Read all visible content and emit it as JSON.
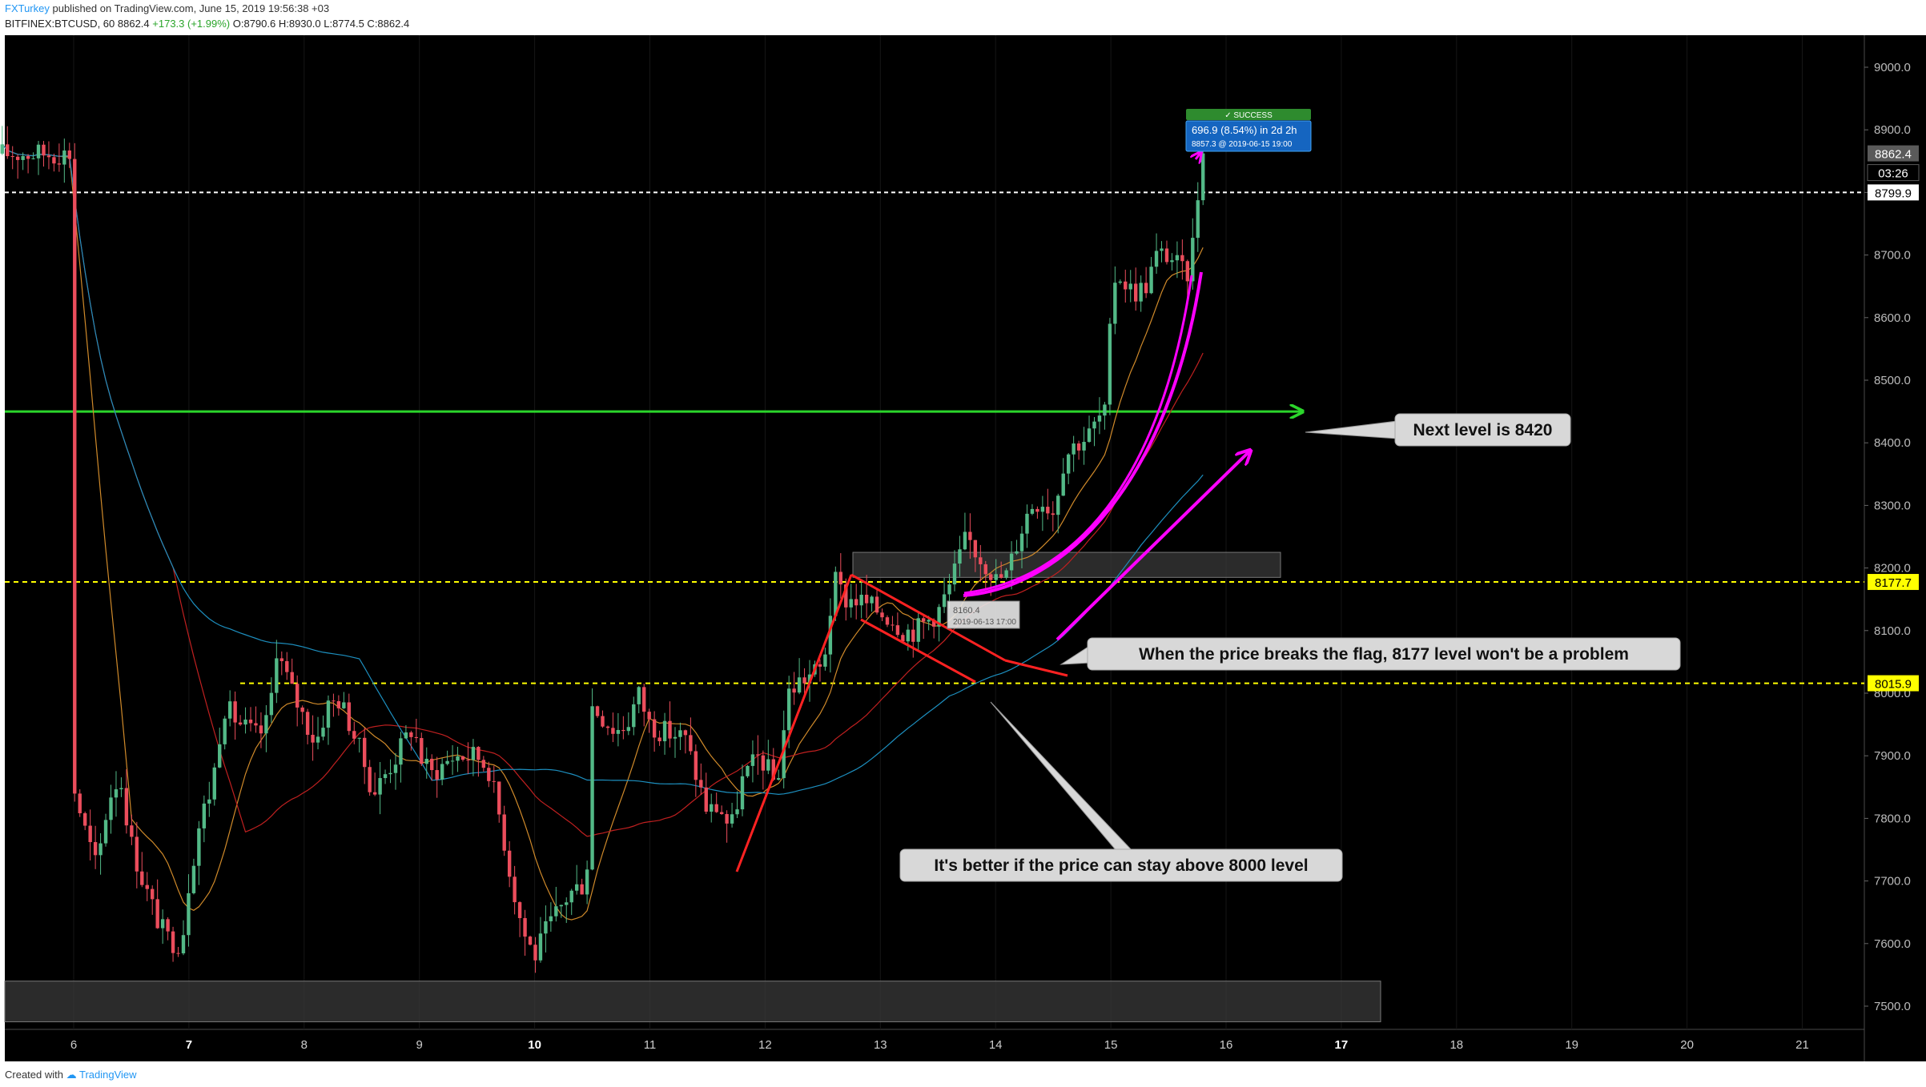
{
  "header": {
    "author": "FXTurkey",
    "published": "published on TradingView.com, June 15, 2019 19:56:38 +03",
    "symbol": "BITFINEX:BTCUSD, 60",
    "last": "8862.4",
    "change": "+173.3 (+1.99%)",
    "ohlc": "O:8790.6 H:8930.0 L:8774.5 C:8862.4"
  },
  "footer": {
    "created_with": "Created with",
    "brand": "TradingView"
  },
  "colors": {
    "background": "#000000",
    "up": "#53b987",
    "down": "#eb4d5c",
    "support": "#ffff00",
    "resistance": "#2bd52b",
    "flag": "#ff2222",
    "projection": "#ff00ff"
  },
  "chart_data": {
    "type": "candlestick",
    "ylim": [
      7470,
      9080
    ],
    "x_ticks": [
      "6",
      "7",
      "8",
      "9",
      "10",
      "11",
      "12",
      "13",
      "14",
      "15",
      "16",
      "17",
      "18",
      "19",
      "20",
      "21"
    ],
    "x_ticks_bold": [
      "7",
      "10",
      "17"
    ],
    "y_ticks": [
      "9000.0",
      "8900.0",
      "8800.0",
      "8700.0",
      "8600.0",
      "8500.0",
      "8400.0",
      "8300.0",
      "8200.0",
      "8100.0",
      "8000.0",
      "7900.0",
      "7800.0",
      "7700.0",
      "7600.0",
      "7500.0"
    ],
    "price_labels": {
      "last": "8862.4",
      "countdown": "03:26",
      "level_white": "8799.9",
      "level_mid": "8177.7",
      "level_low": "8015.9"
    },
    "levels": {
      "white_dashed": 8800,
      "green_line": 8450,
      "yellow_upper": 8177.7,
      "yellow_lower": 8015.9
    },
    "price_path": [
      [
        0.0,
        7850
      ],
      [
        0.1,
        7780
      ],
      [
        0.2,
        7720
      ],
      [
        0.3,
        7830
      ],
      [
        0.4,
        7870
      ],
      [
        0.5,
        7760
      ],
      [
        0.6,
        7700
      ],
      [
        0.7,
        7650
      ],
      [
        0.8,
        7610
      ],
      [
        0.9,
        7600
      ],
      [
        0.95,
        7620
      ],
      [
        1.0,
        7700
      ],
      [
        1.1,
        7800
      ],
      [
        1.2,
        7850
      ],
      [
        1.3,
        7980
      ],
      [
        1.45,
        7950
      ],
      [
        1.6,
        7930
      ],
      [
        1.7,
        7960
      ],
      [
        1.75,
        8080
      ],
      [
        1.8,
        8050
      ],
      [
        1.9,
        8000
      ],
      [
        2.0,
        7960
      ],
      [
        2.1,
        7920
      ],
      [
        2.2,
        7980
      ],
      [
        2.3,
        7990
      ],
      [
        2.4,
        7950
      ],
      [
        2.5,
        7900
      ],
      [
        2.6,
        7840
      ],
      [
        2.8,
        7900
      ],
      [
        2.95,
        7950
      ],
      [
        3.0,
        7900
      ],
      [
        3.1,
        7870
      ],
      [
        3.3,
        7900
      ],
      [
        3.5,
        7900
      ],
      [
        3.6,
        7880
      ],
      [
        3.7,
        7800
      ],
      [
        3.8,
        7700
      ],
      [
        3.9,
        7620
      ],
      [
        4.0,
        7580
      ],
      [
        4.1,
        7620
      ],
      [
        4.2,
        7650
      ],
      [
        4.3,
        7680
      ],
      [
        4.45,
        7700
      ],
      [
        4.5,
        7980
      ],
      [
        4.6,
        7960
      ],
      [
        4.7,
        7940
      ],
      [
        4.8,
        7950
      ],
      [
        4.9,
        8000
      ],
      [
        5.0,
        7950
      ],
      [
        5.1,
        7940
      ],
      [
        5.3,
        7930
      ],
      [
        5.5,
        7810
      ],
      [
        5.6,
        7820
      ],
      [
        5.7,
        7780
      ],
      [
        5.8,
        7860
      ],
      [
        5.95,
        7900
      ],
      [
        6.05,
        7870
      ],
      [
        6.1,
        7850
      ],
      [
        6.2,
        8000
      ],
      [
        6.3,
        8020
      ],
      [
        6.5,
        8040
      ],
      [
        6.6,
        8180
      ],
      [
        6.7,
        8150
      ],
      [
        6.8,
        8150
      ],
      [
        6.9,
        8140
      ],
      [
        7.0,
        8130
      ],
      [
        7.1,
        8120
      ],
      [
        7.2,
        8100
      ],
      [
        7.3,
        8100
      ],
      [
        7.5,
        8130
      ],
      [
        7.6,
        8170
      ],
      [
        7.75,
        8250
      ],
      [
        7.85,
        8220
      ],
      [
        7.95,
        8200
      ],
      [
        8.0,
        8180
      ],
      [
        8.1,
        8190
      ],
      [
        8.2,
        8250
      ],
      [
        8.3,
        8300
      ],
      [
        8.4,
        8310
      ],
      [
        8.5,
        8290
      ],
      [
        8.6,
        8380
      ],
      [
        8.7,
        8400
      ],
      [
        8.8,
        8410
      ],
      [
        8.9,
        8440
      ],
      [
        8.97,
        8450
      ],
      [
        9.0,
        8620
      ],
      [
        9.05,
        8680
      ],
      [
        9.1,
        8660
      ],
      [
        9.2,
        8640
      ],
      [
        9.3,
        8650
      ],
      [
        9.4,
        8700
      ],
      [
        9.5,
        8700
      ],
      [
        9.6,
        8680
      ],
      [
        9.65,
        8660
      ],
      [
        9.7,
        8700
      ],
      [
        9.75,
        8790
      ],
      [
        9.8,
        8862
      ]
    ],
    "legend": []
  },
  "annotations": {
    "resistance_callout": "Next level is 8420",
    "flag_callout": "When the price breaks the flag, 8177 level won't be a problem",
    "support_callout": "It's better if the price can stay above 8000 level",
    "success_tag": "✓ SUCCESS",
    "projection_main": "696.9 (8.54%) in 2d 2h",
    "projection_sub": "8857.3 @ 2019-06-15 19:00",
    "entry_price": "8160.4",
    "entry_date": "2019-06-13 17:00"
  }
}
